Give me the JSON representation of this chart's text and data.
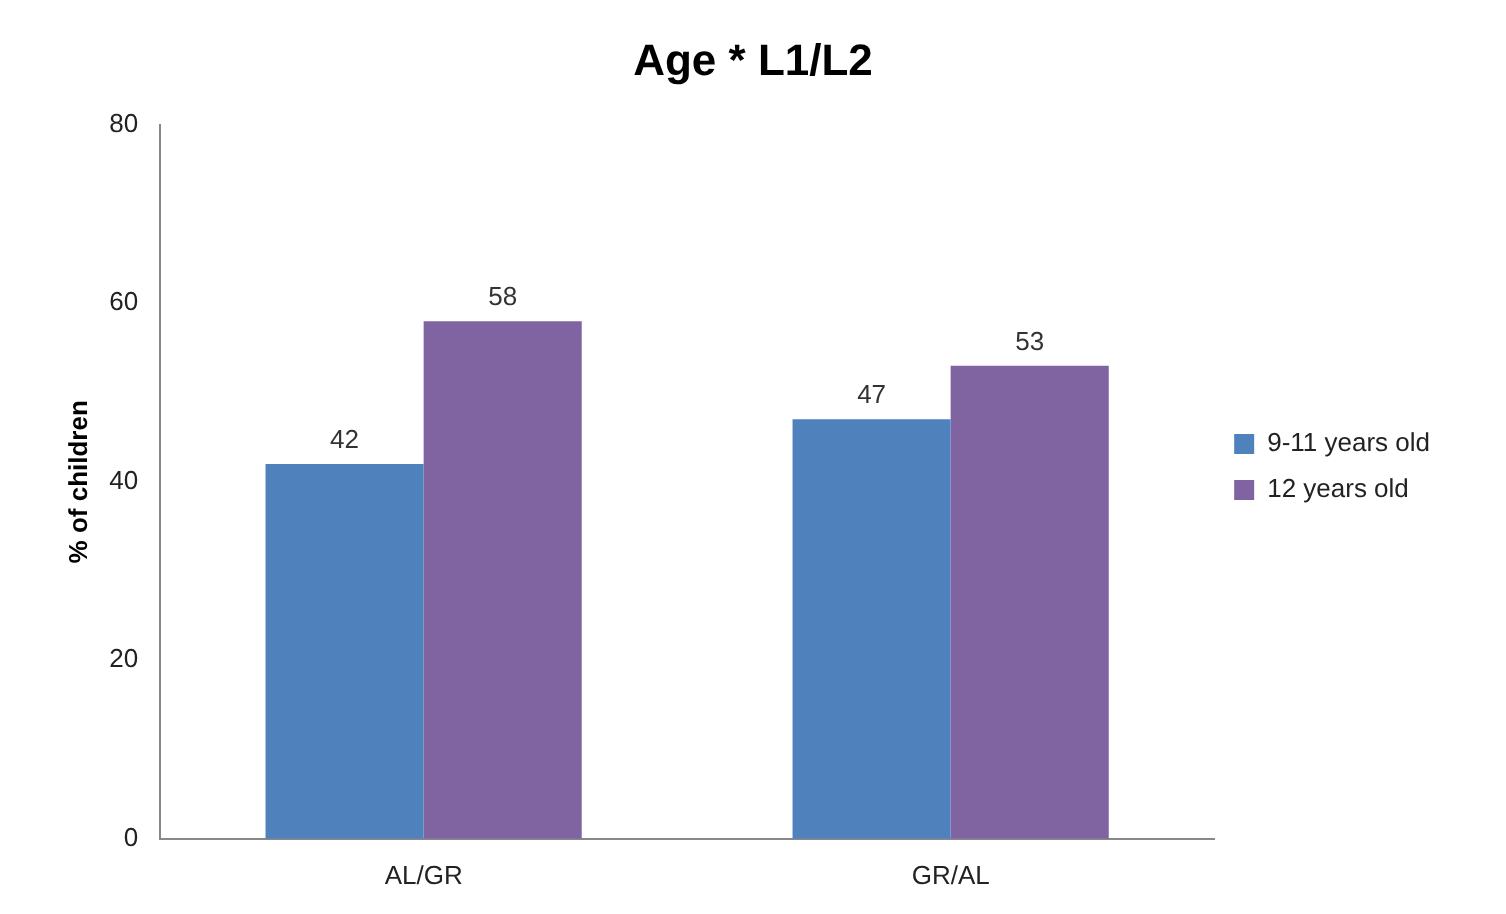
{
  "chart_data": {
    "type": "bar",
    "title": "Age * L1/L2",
    "ylabel": "% of children",
    "categories": [
      "AL/GR",
      "GR/AL"
    ],
    "series": [
      {
        "name": "9-11 years old",
        "color": "#4f81bd",
        "values": [
          42,
          47
        ]
      },
      {
        "name": "12 years old",
        "color": "#8064a2",
        "values": [
          58,
          53
        ]
      }
    ],
    "ylim": [
      0,
      80
    ],
    "yticks": [
      0,
      20,
      40,
      60,
      80
    ],
    "data_labels": true,
    "legend": "right",
    "grid": false
  }
}
